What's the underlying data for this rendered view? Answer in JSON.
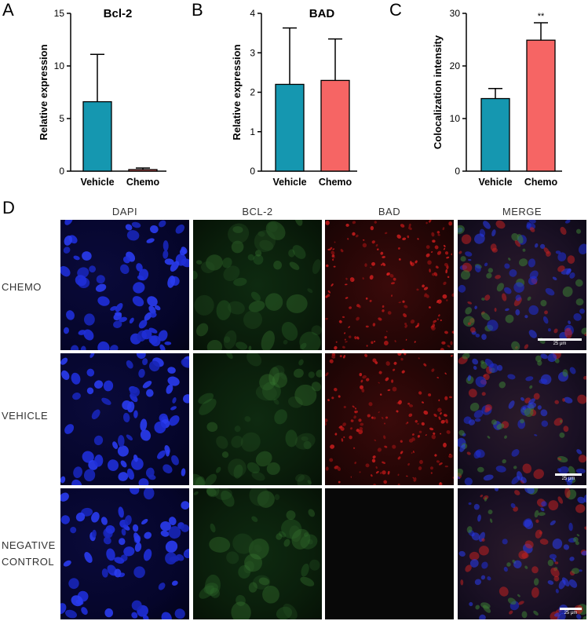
{
  "panel_labels": {
    "a": "A",
    "b": "B",
    "c": "C",
    "d": "D"
  },
  "colors": {
    "vehicle": "#1597b0",
    "chemo": "#f66564"
  },
  "chart_data": [
    {
      "type": "bar",
      "title": "Bcl-2",
      "ylabel": "Relative expression",
      "xlabel": "",
      "categories": [
        "Vehicle",
        "Chemo"
      ],
      "values": [
        6.6,
        0.15
      ],
      "errors": [
        4.5,
        0.15
      ],
      "ylim": [
        0,
        15
      ],
      "yticks": [
        0,
        5,
        10,
        15
      ],
      "annotations": []
    },
    {
      "type": "bar",
      "title": "BAD",
      "ylabel": "Relative expression",
      "xlabel": "",
      "categories": [
        "Vehicle",
        "Chemo"
      ],
      "values": [
        2.2,
        2.3
      ],
      "errors": [
        1.43,
        1.05
      ],
      "ylim": [
        0,
        4
      ],
      "yticks": [
        0,
        1,
        2,
        3,
        4
      ],
      "annotations": []
    },
    {
      "type": "bar",
      "title": "",
      "ylabel": "Colocalization intensity",
      "xlabel": "",
      "categories": [
        "Vehicle",
        "Chemo"
      ],
      "values": [
        13.8,
        24.9
      ],
      "errors": [
        1.9,
        3.3
      ],
      "ylim": [
        0,
        30
      ],
      "yticks": [
        0,
        10,
        20,
        30
      ],
      "annotations": [
        "",
        "**"
      ]
    }
  ],
  "micrograph": {
    "columns": [
      "DAPI",
      "BCL-2",
      "BAD",
      "MERGE"
    ],
    "rows": [
      {
        "label_lines": [
          "CHEMO"
        ]
      },
      {
        "label_lines": [
          "VEHICLE"
        ]
      },
      {
        "label_lines": [
          "NEGATIVE",
          "CONTROL"
        ]
      }
    ],
    "scale_bar_text": "25 μm"
  }
}
